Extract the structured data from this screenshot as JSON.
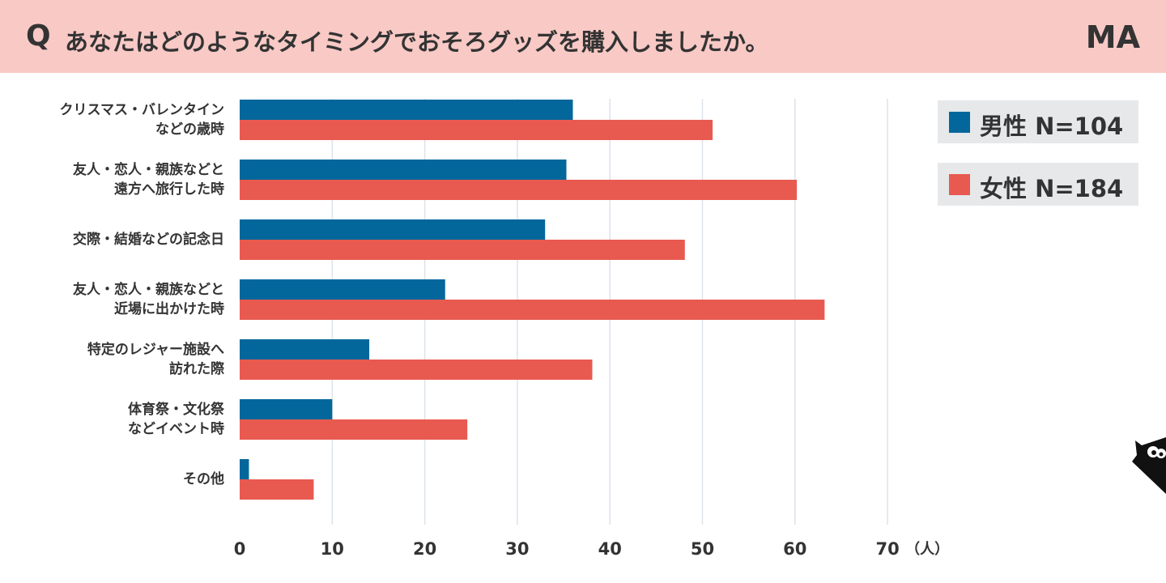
{
  "header": {
    "q_letter": "Q",
    "question": "あなたはどのようなタイミングでおそろグッズを購入しましたか。",
    "badge": "MA"
  },
  "colors": {
    "header_bg": "#f8c9c5",
    "male": "#04679c",
    "female": "#e85a50",
    "legend_bg": "#e6e8ea",
    "grid": "#dde3ea"
  },
  "legend": [
    {
      "label": "男性 N=104",
      "color": "#04679c"
    },
    {
      "label": "女性 N=184",
      "color": "#e85a50"
    }
  ],
  "chart_data": {
    "type": "bar",
    "orientation": "horizontal",
    "categories": [
      [
        "クリスマス・バレンタイン",
        "などの歳時"
      ],
      [
        "友人・恋人・親族などと",
        "遠方へ旅行した時"
      ],
      [
        "交際・結婚などの記念日"
      ],
      [
        "友人・恋人・親族などと",
        "近場に出かけた時"
      ],
      [
        "特定のレジャー施設へ",
        "訪れた際"
      ],
      [
        "体育祭・文化祭",
        "などイベント時"
      ],
      [
        "その他"
      ]
    ],
    "series": [
      {
        "name": "男性 N=104",
        "color": "#04679c",
        "values": [
          36,
          35.3,
          33,
          22.2,
          14,
          10,
          1
        ]
      },
      {
        "name": "女性 N=184",
        "color": "#e85a50",
        "values": [
          51.1,
          60.2,
          48.1,
          63.2,
          38.1,
          24.6,
          8
        ]
      }
    ],
    "xlim": [
      0,
      70
    ],
    "xticks": [
      "0",
      "10",
      "20",
      "30",
      "40",
      "50",
      "60",
      "70"
    ],
    "unit": "（人）",
    "grid": true,
    "legend_position": "top-right"
  }
}
